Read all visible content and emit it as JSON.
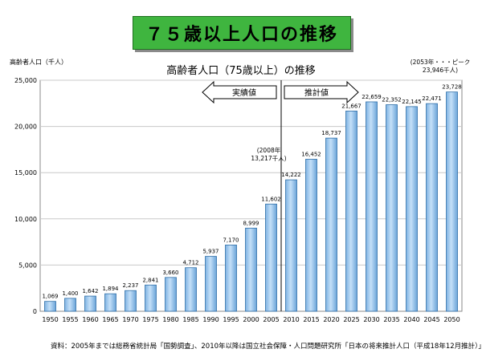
{
  "slide_title": "７５歳以上人口の推移",
  "source_note": "資料：2005年までは総務省統計局「国勢調査」、2010年以降は国立社会保障・人口問題研究所「日本の将来推計人口（平成18年12月推計）」",
  "chart_data": {
    "type": "bar",
    "title": "高齢者人口（75歳以上）の推移",
    "ylabel": "高齢者人口（千人）",
    "xlabel": "",
    "ylim": [
      0,
      25000
    ],
    "yticks": [
      0,
      5000,
      10000,
      15000,
      20000,
      25000
    ],
    "ytick_labels": [
      "0",
      "5,000",
      "10,000",
      "15,000",
      "20,000",
      "25,000"
    ],
    "grid": true,
    "categories": [
      "1950",
      "1955",
      "1960",
      "1965",
      "1970",
      "1975",
      "1980",
      "1985",
      "1990",
      "1995",
      "2000",
      "2005",
      "2010",
      "2015",
      "2020",
      "2025",
      "2030",
      "2035",
      "2040",
      "2045",
      "2050"
    ],
    "values": [
      1069,
      1400,
      1642,
      1894,
      2237,
      2841,
      3660,
      4712,
      5937,
      7170,
      8999,
      11602,
      14222,
      16452,
      18737,
      21667,
      22659,
      22352,
      22145,
      22471,
      23728
    ],
    "value_labels": [
      "1,069",
      "1,400",
      "1,642",
      "1,894",
      "2,237",
      "2,841",
      "3,660",
      "4,712",
      "5,937",
      "7,170",
      "8,999",
      "11,602",
      "14,222",
      "16,452",
      "18,737",
      "21,667",
      "22,659",
      "22,352",
      "22,145",
      "22,471",
      "23,728"
    ],
    "divider_between": [
      "2005",
      "2010"
    ],
    "arrows": {
      "left": "実績値",
      "right": "推計値"
    },
    "annotations": [
      {
        "lines": [
          "(2008年",
          "13,217千人)"
        ],
        "year": "2008"
      },
      {
        "lines": [
          "(2053年・・・ピーク",
          "23,946千人)"
        ],
        "year": "2053"
      }
    ],
    "colors": {
      "bar_fill": "#a8cef0",
      "bar_stroke": "#2f6fa8",
      "grid": "#c8c8c8"
    }
  }
}
